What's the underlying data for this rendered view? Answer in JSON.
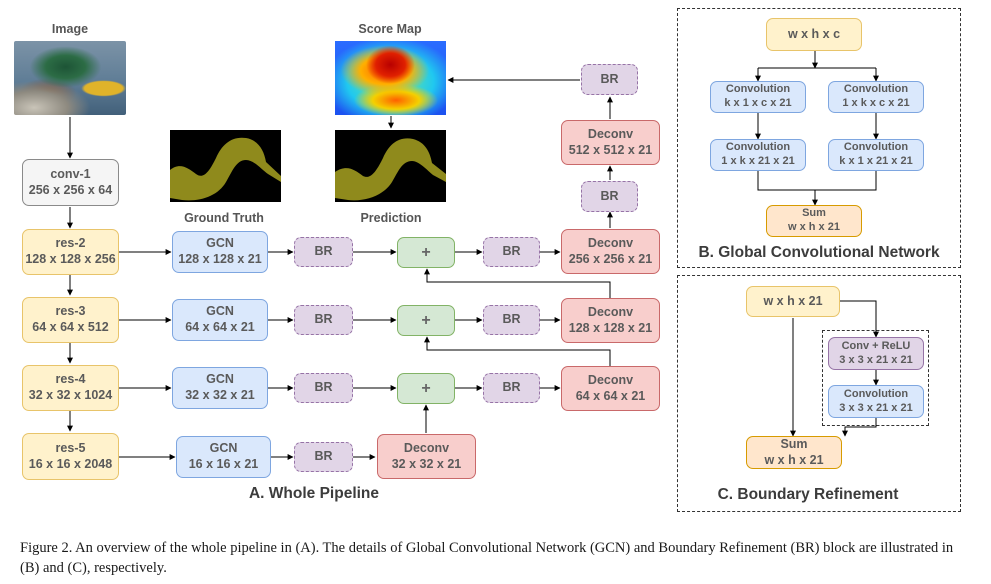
{
  "labels": {
    "image": "Image",
    "score_map": "Score Map",
    "ground_truth": "Ground Truth",
    "prediction": "Prediction"
  },
  "sections": {
    "whole_pipeline": "A. Whole Pipeline",
    "gcn": "B. Global Convolutional Network",
    "br": "C. Boundary Refinement"
  },
  "encoder": [
    {
      "name": "conv-1",
      "size": "256 x 256 x 64"
    },
    {
      "name": "res-2",
      "size": "128 x 128 x 256"
    },
    {
      "name": "res-3",
      "size": "64 x 64 x 512"
    },
    {
      "name": "res-4",
      "size": "32 x 32 x 1024"
    },
    {
      "name": "res-5",
      "size": "16 x 16 x 2048"
    }
  ],
  "gcn_blocks": [
    {
      "name": "GCN",
      "size": "128 x 128 x 21"
    },
    {
      "name": "GCN",
      "size": "64 x 64 x 21"
    },
    {
      "name": "GCN",
      "size": "32 x 32 x 21"
    },
    {
      "name": "GCN",
      "size": "16 x 16 x 21"
    }
  ],
  "br_label": "BR",
  "plus_label": "+",
  "deconv": [
    {
      "name": "Deconv",
      "size": "512 x 512 x 21"
    },
    {
      "name": "Deconv",
      "size": "256 x 256 x 21"
    },
    {
      "name": "Deconv",
      "size": "128 x 128 x 21"
    },
    {
      "name": "Deconv",
      "size": "64 x 64 x 21"
    },
    {
      "name": "Deconv",
      "size": "32 x 32 x 21"
    }
  ],
  "gcn_detail": {
    "input": "w x h x c",
    "left_1": {
      "name": "Convolution",
      "size": "k x 1 x c x 21"
    },
    "right_1": {
      "name": "Convolution",
      "size": "1 x k x c x 21"
    },
    "left_2": {
      "name": "Convolution",
      "size": "1 x k x 21 x 21"
    },
    "right_2": {
      "name": "Convolution",
      "size": "k x 1 x 21 x 21"
    },
    "sum": {
      "name": "Sum",
      "size": "w x h x 21"
    }
  },
  "br_detail": {
    "input": "w x h x 21",
    "conv_relu": {
      "name": "Conv + ReLU",
      "size": "3 x 3 x 21 x 21"
    },
    "conv": {
      "name": "Convolution",
      "size": "3 x 3 x 21 x 21"
    },
    "sum": {
      "name": "Sum",
      "size": "w x h x 21"
    }
  },
  "caption": "Figure 2.  An overview of the whole pipeline in (A). The details of Global Convolutional Network (GCN) and Boundary Refinement (BR) block are illustrated in (B) and (C), respectively.",
  "colors": {
    "encoder_fill": "#fff2cc",
    "gcn_fill": "#dae8fc",
    "br_fill": "#e1d5e7",
    "sum_fill": "#d5e8d4",
    "deconv_fill": "#f8cecc",
    "mask_fill": "#8f8a1c"
  }
}
